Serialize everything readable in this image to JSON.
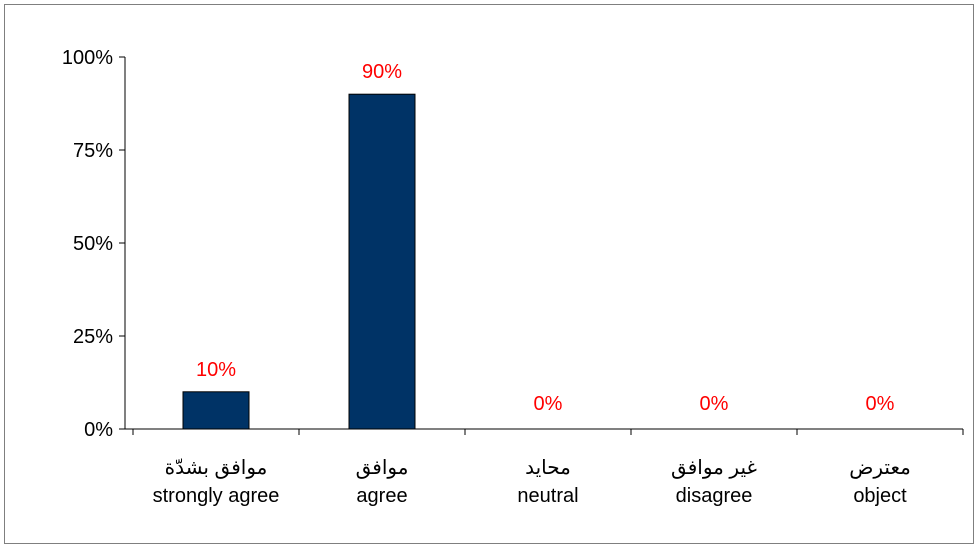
{
  "chart_data": {
    "type": "bar",
    "categories": [
      {
        "ar": "موافق بشدّة",
        "en": "strongly agree"
      },
      {
        "ar": "موافق",
        "en": "agree"
      },
      {
        "ar": "محايد",
        "en": "neutral"
      },
      {
        "ar": "غير موافق",
        "en": "disagree"
      },
      {
        "ar": "معترض",
        "en": "object"
      }
    ],
    "values": [
      10,
      90,
      0,
      0,
      0
    ],
    "data_labels": [
      "10%",
      "90%",
      "0%",
      "0%",
      "0%"
    ],
    "yticks": [
      "0%",
      "25%",
      "50%",
      "75%",
      "100%"
    ],
    "ylim": [
      0,
      100
    ],
    "bar_color": "#003366",
    "label_color": "#ff0000",
    "grid": false,
    "legend": "none"
  }
}
